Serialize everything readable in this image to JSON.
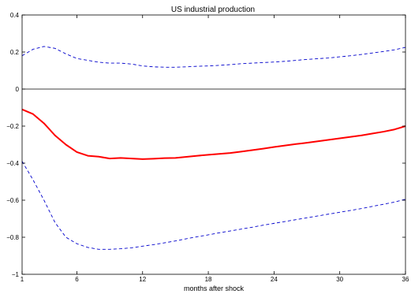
{
  "chart_data": {
    "type": "line",
    "title": "US industrial production",
    "xlabel": "months after shock",
    "ylabel": "",
    "xlim": [
      1,
      36
    ],
    "ylim": [
      -1,
      0.4
    ],
    "x_ticks": [
      1,
      6,
      12,
      18,
      24,
      30,
      36
    ],
    "x_tick_labels": [
      "1",
      "6",
      "12",
      "18",
      "24",
      "30",
      "36"
    ],
    "y_ticks": [
      -1,
      -0.8,
      -0.6,
      -0.4,
      -0.2,
      0,
      0.2,
      0.4
    ],
    "y_tick_labels": [
      "−1",
      "−0.8",
      "−0.6",
      "−0.4",
      "−0.2",
      "0",
      "0.2",
      "0.4"
    ],
    "grid": false,
    "reference_line": {
      "y": 0,
      "color": "#000000"
    },
    "x": [
      1,
      2,
      3,
      4,
      5,
      6,
      7,
      8,
      9,
      10,
      11,
      12,
      13,
      14,
      15,
      16,
      17,
      18,
      19,
      20,
      21,
      22,
      23,
      24,
      25,
      26,
      27,
      28,
      29,
      30,
      31,
      32,
      33,
      34,
      35,
      36
    ],
    "series": [
      {
        "role": "point estimate",
        "color": "#ff0000",
        "style": "solid",
        "values": [
          -0.11,
          -0.135,
          -0.185,
          -0.25,
          -0.3,
          -0.34,
          -0.36,
          -0.365,
          -0.375,
          -0.372,
          -0.375,
          -0.378,
          -0.376,
          -0.373,
          -0.372,
          -0.366,
          -0.36,
          -0.355,
          -0.35,
          -0.345,
          -0.338,
          -0.33,
          -0.322,
          -0.313,
          -0.305,
          -0.297,
          -0.29,
          -0.282,
          -0.274,
          -0.266,
          -0.258,
          -0.25,
          -0.24,
          -0.23,
          -0.218,
          -0.2
        ]
      },
      {
        "role": "upper band",
        "color": "#0000cc",
        "style": "dashed",
        "values": [
          0.18,
          0.215,
          0.23,
          0.22,
          0.19,
          0.165,
          0.155,
          0.145,
          0.14,
          0.14,
          0.135,
          0.125,
          0.12,
          0.118,
          0.118,
          0.12,
          0.123,
          0.125,
          0.128,
          0.132,
          0.137,
          0.14,
          0.143,
          0.146,
          0.15,
          0.155,
          0.16,
          0.164,
          0.168,
          0.174,
          0.18,
          0.187,
          0.195,
          0.203,
          0.212,
          0.225
        ]
      },
      {
        "role": "lower band",
        "color": "#0000cc",
        "style": "dashed",
        "values": [
          -0.39,
          -0.49,
          -0.6,
          -0.72,
          -0.8,
          -0.835,
          -0.855,
          -0.865,
          -0.865,
          -0.862,
          -0.857,
          -0.848,
          -0.84,
          -0.83,
          -0.82,
          -0.808,
          -0.797,
          -0.787,
          -0.776,
          -0.766,
          -0.756,
          -0.746,
          -0.735,
          -0.725,
          -0.715,
          -0.705,
          -0.695,
          -0.685,
          -0.675,
          -0.665,
          -0.655,
          -0.645,
          -0.633,
          -0.622,
          -0.61,
          -0.595
        ]
      }
    ]
  }
}
